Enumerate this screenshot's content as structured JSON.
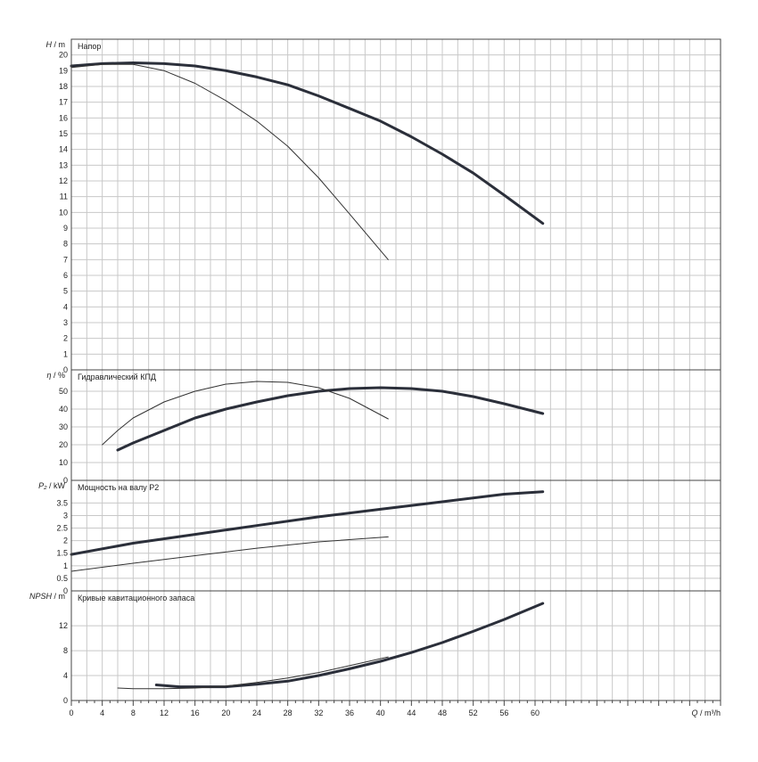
{
  "chart_data": [
    {
      "type": "line",
      "ylabel": "H / m",
      "annotation": "Напор",
      "xlim": [
        0,
        84
      ],
      "ylim": [
        0,
        21
      ],
      "xticks": [
        0,
        4,
        8,
        12,
        16,
        20,
        24,
        28,
        32,
        36,
        40,
        44,
        48,
        52,
        56,
        60
      ],
      "yticks": [
        0,
        1,
        2,
        3,
        4,
        5,
        6,
        7,
        8,
        9,
        10,
        11,
        12,
        13,
        14,
        15,
        16,
        17,
        18,
        19,
        20
      ],
      "series": [
        {
          "style": "thick",
          "x": [
            0,
            4,
            8,
            12,
            16,
            20,
            24,
            28,
            32,
            36,
            40,
            44,
            48,
            52,
            56,
            61
          ],
          "y": [
            19.3,
            19.45,
            19.5,
            19.45,
            19.3,
            19.0,
            18.6,
            18.1,
            17.4,
            16.6,
            15.8,
            14.8,
            13.7,
            12.5,
            11.1,
            9.3
          ]
        },
        {
          "style": "thin",
          "x": [
            0,
            4,
            8,
            12,
            16,
            20,
            24,
            28,
            32,
            36,
            41
          ],
          "y": [
            19.2,
            19.4,
            19.4,
            19.0,
            18.2,
            17.1,
            15.8,
            14.2,
            12.2,
            9.9,
            7.0
          ]
        }
      ]
    },
    {
      "type": "line",
      "ylabel": "η / %",
      "annotation": "Гидравлический КПД",
      "xlim": [
        0,
        84
      ],
      "ylim": [
        0,
        62
      ],
      "yticks": [
        0,
        10,
        20,
        30,
        40,
        50
      ],
      "series": [
        {
          "style": "thick",
          "x": [
            6,
            8,
            12,
            16,
            20,
            24,
            28,
            32,
            36,
            40,
            44,
            48,
            52,
            56,
            61
          ],
          "y": [
            17,
            21,
            28,
            35,
            40,
            44,
            47.5,
            50,
            51.5,
            52,
            51.5,
            50,
            47,
            43,
            37.5
          ]
        },
        {
          "style": "thin",
          "x": [
            4,
            6,
            8,
            12,
            16,
            20,
            24,
            28,
            32,
            36,
            41
          ],
          "y": [
            20,
            28,
            35,
            44,
            50,
            54,
            55.5,
            55,
            52,
            46,
            34.5
          ]
        }
      ]
    },
    {
      "type": "line",
      "ylabel": "P₂ / kW",
      "annotation": "Мощность на валу P2",
      "xlim": [
        0,
        84
      ],
      "ylim": [
        0,
        4.4
      ],
      "yticks": [
        0,
        0.5,
        1,
        1.5,
        2,
        2.5,
        3,
        3.5
      ],
      "series": [
        {
          "style": "thick",
          "x": [
            0,
            8,
            16,
            24,
            32,
            40,
            48,
            56,
            61
          ],
          "y": [
            1.45,
            1.9,
            2.25,
            2.6,
            2.95,
            3.25,
            3.55,
            3.85,
            3.95
          ]
        },
        {
          "style": "thin",
          "x": [
            0,
            8,
            16,
            24,
            32,
            41
          ],
          "y": [
            0.78,
            1.1,
            1.4,
            1.7,
            1.95,
            2.15
          ]
        }
      ]
    },
    {
      "type": "line",
      "ylabel": "NPSH / m",
      "annotation": "Кривые кавитационного запаса",
      "xlabel": "Q / m³/h",
      "xlim": [
        0,
        84
      ],
      "ylim": [
        0,
        17.6
      ],
      "yticks": [
        0,
        4,
        8,
        12
      ],
      "series": [
        {
          "style": "thick",
          "x": [
            11,
            14,
            20,
            24,
            28,
            32,
            36,
            40,
            44,
            48,
            52,
            56,
            61
          ],
          "y": [
            2.5,
            2.2,
            2.2,
            2.6,
            3.1,
            4.0,
            5.1,
            6.3,
            7.7,
            9.3,
            11.1,
            13.0,
            15.6
          ]
        },
        {
          "style": "thin",
          "x": [
            6,
            8,
            12,
            16,
            20,
            24,
            28,
            32,
            36,
            41
          ],
          "y": [
            2.0,
            1.9,
            1.9,
            2.0,
            2.3,
            2.9,
            3.6,
            4.5,
            5.6,
            7.0
          ]
        }
      ]
    }
  ]
}
